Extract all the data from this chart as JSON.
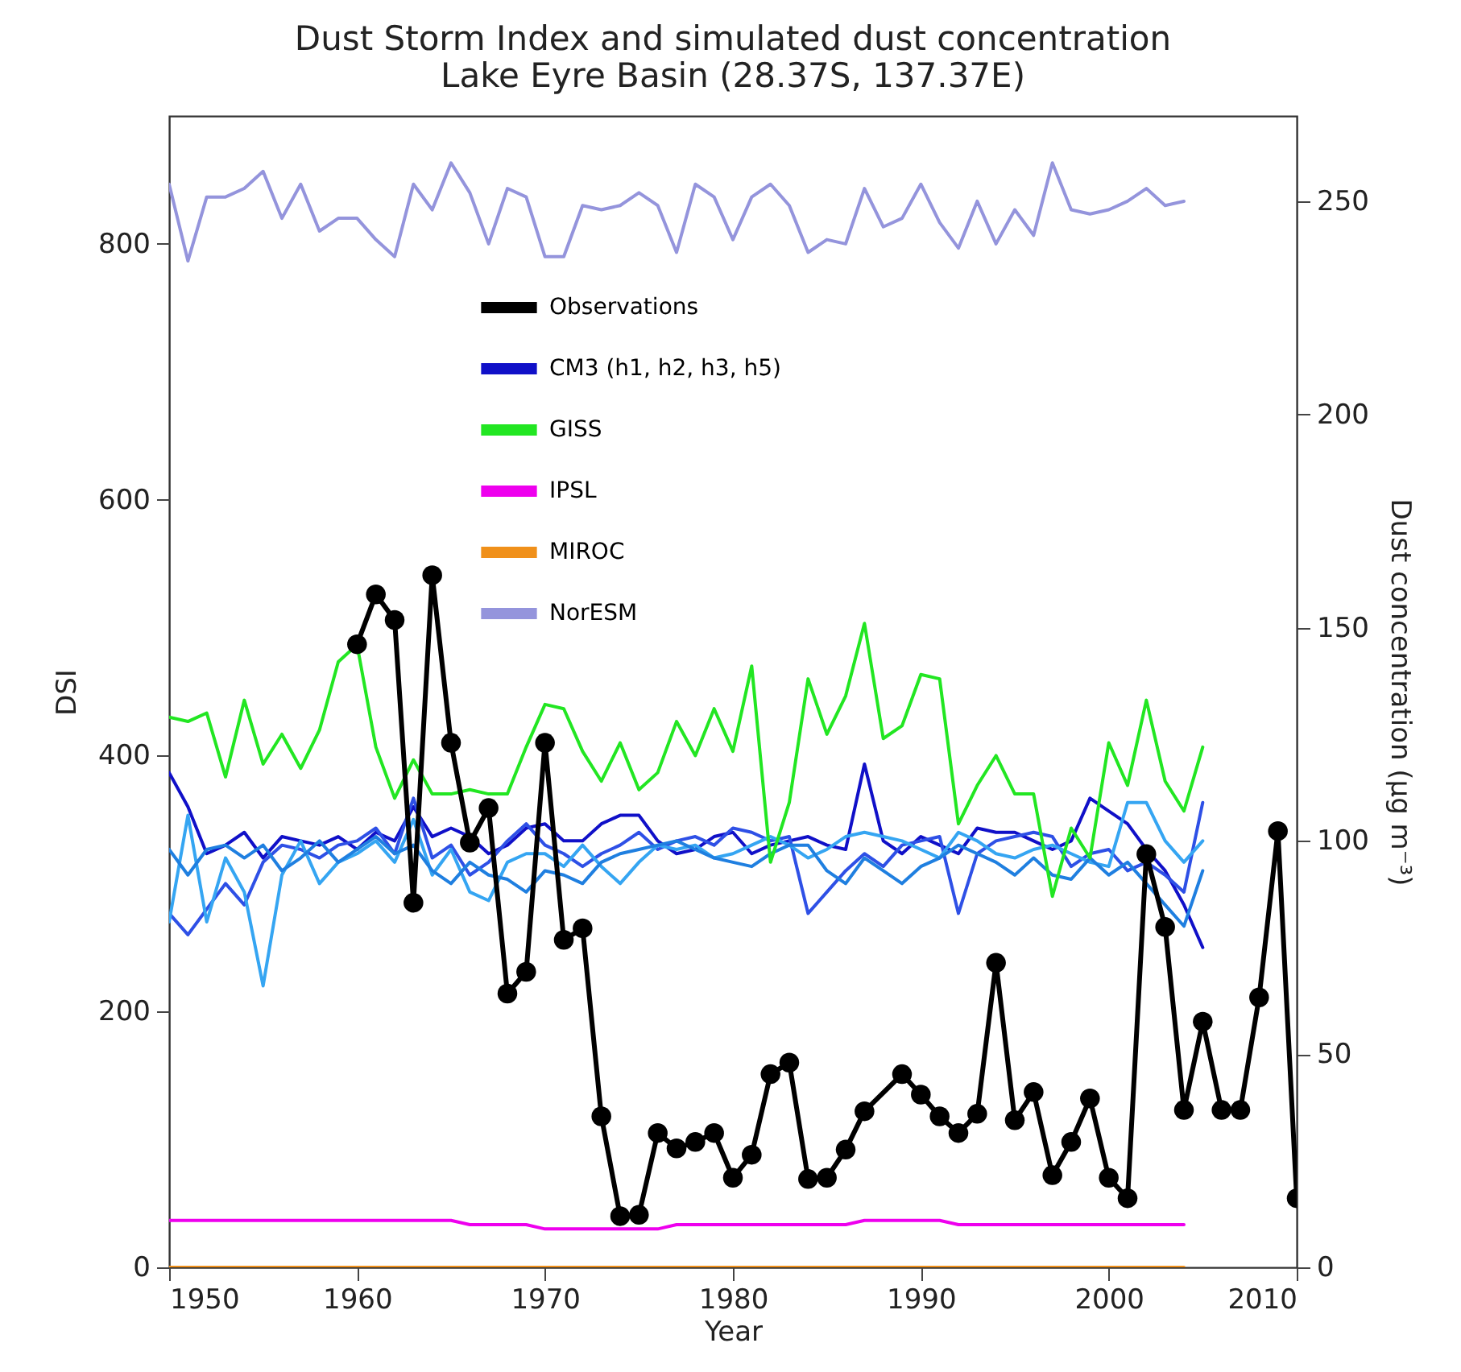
{
  "chart_data": {
    "type": "line",
    "title": "Dust Storm Index and simulated dust concentration",
    "subtitle": "Lake Eyre Basin (28.37S, 137.37E)",
    "xlabel": "Year",
    "ylabel": "DSI",
    "y2label": "Dust concentration (μg m⁻³)",
    "x": [
      1950,
      1951,
      1952,
      1953,
      1954,
      1955,
      1956,
      1957,
      1958,
      1959,
      1960,
      1961,
      1962,
      1963,
      1964,
      1965,
      1966,
      1967,
      1968,
      1969,
      1970,
      1971,
      1972,
      1973,
      1974,
      1975,
      1976,
      1977,
      1978,
      1979,
      1980,
      1981,
      1982,
      1983,
      1984,
      1985,
      1986,
      1987,
      1988,
      1989,
      1990,
      1991,
      1992,
      1993,
      1994,
      1995,
      1996,
      1997,
      1998,
      1999,
      2000,
      2001,
      2002,
      2003,
      2004,
      2005
    ],
    "xlim": [
      1950,
      2010
    ],
    "xticks": [
      1950,
      1960,
      1970,
      1980,
      1990,
      2000,
      2010
    ],
    "ylim": [
      0,
      900
    ],
    "yticks": [
      0,
      200,
      400,
      600,
      800
    ],
    "y2lim": [
      0,
      270
    ],
    "y2ticks": [
      0,
      50,
      100,
      150,
      200,
      250
    ],
    "grid": false,
    "legend": "top left",
    "series": [
      {
        "name": "Observations",
        "color": "#000000",
        "marker": "circle",
        "x": [
          1960,
          1961,
          1962,
          1963,
          1964,
          1965,
          1966,
          1967,
          1968,
          1969,
          1970,
          1971,
          1972,
          1973,
          1974,
          1975,
          1976,
          1977,
          1978,
          1979,
          1980,
          1981,
          1982,
          1983,
          1984,
          1985,
          1986,
          1987,
          1989,
          1990,
          1991,
          1992,
          1993,
          1994,
          1995,
          1996,
          1997,
          1998,
          1999,
          2000,
          2001,
          2002,
          2003,
          2004,
          2005,
          2006,
          2007,
          2008,
          2009,
          2010
        ],
        "values": [
          487,
          526,
          506,
          285,
          541,
          410,
          332,
          359,
          214,
          231,
          410,
          256,
          265,
          118,
          40,
          41,
          105,
          93,
          98,
          105,
          70,
          88,
          151,
          160,
          69,
          70,
          92,
          122,
          151,
          135,
          118,
          105,
          120,
          238,
          115,
          137,
          72,
          98,
          132,
          70,
          54,
          323,
          266,
          123,
          192,
          123,
          123,
          211,
          341,
          54
        ]
      },
      {
        "name": "CM3 (h1, h2, h3, h5)",
        "color": "#1010c8",
        "axis": "y2",
        "values": [
          116,
          108,
          97,
          99,
          102,
          96,
          101,
          100,
          99,
          101,
          98,
          102,
          100,
          108,
          101,
          103,
          101,
          97,
          99,
          103,
          104,
          100,
          100,
          104,
          106,
          106,
          100,
          97,
          98,
          101,
          102,
          97,
          99,
          100,
          101,
          99,
          98,
          118,
          100,
          97,
          101,
          99,
          97,
          103,
          102,
          102,
          100,
          98,
          100,
          110,
          107,
          104,
          98,
          93,
          85,
          75
        ]
      },
      {
        "color": "#2e50e6",
        "axis": "y2",
        "values": [
          83,
          78,
          84,
          90,
          85,
          95,
          99,
          98,
          96,
          99,
          100,
          103,
          97,
          110,
          96,
          99,
          92,
          95,
          100,
          104,
          99,
          97,
          94,
          97,
          99,
          102,
          98,
          100,
          101,
          99,
          103,
          102,
          100,
          101,
          83,
          88,
          93,
          97,
          94,
          99,
          100,
          101,
          83,
          97,
          100,
          101,
          102,
          101,
          94,
          97,
          98,
          93,
          95,
          92,
          88,
          109
        ]
      },
      {
        "color": "#35a5f2",
        "axis": "y2",
        "values": [
          81,
          106,
          81,
          96,
          88,
          66,
          92,
          100,
          90,
          95,
          97,
          100,
          95,
          105,
          92,
          98,
          88,
          86,
          95,
          97,
          97,
          94,
          99,
          94,
          90,
          95,
          99,
          98,
          99,
          96,
          97,
          99,
          101,
          99,
          96,
          98,
          101,
          102,
          101,
          100,
          98,
          96,
          102,
          100,
          97,
          96,
          98,
          99,
          97,
          95,
          94,
          109,
          109,
          100,
          95,
          100
        ]
      },
      {
        "color": "#1f7fe0",
        "axis": "y2",
        "values": [
          98,
          92,
          98,
          99,
          96,
          99,
          93,
          96,
          100,
          95,
          98,
          101,
          97,
          99,
          93,
          90,
          95,
          92,
          91,
          88,
          93,
          92,
          90,
          95,
          97,
          98,
          99,
          100,
          98,
          96,
          95,
          94,
          97,
          99,
          99,
          93,
          90,
          96,
          93,
          90,
          94,
          96,
          99,
          97,
          95,
          92,
          96,
          92,
          91,
          96,
          92,
          95,
          90,
          85,
          80,
          93
        ]
      },
      {
        "name": "GISS",
        "color": "#22e622",
        "axis": "y2",
        "values": [
          129,
          128,
          130,
          115,
          133,
          118,
          125,
          117,
          126,
          142,
          146,
          122,
          110,
          119,
          111,
          111,
          112,
          111,
          111,
          122,
          132,
          131,
          121,
          114,
          123,
          112,
          116,
          128,
          120,
          131,
          121,
          141,
          95,
          109,
          138,
          125,
          134,
          151,
          124,
          127,
          139,
          138,
          104,
          113,
          120,
          111,
          111,
          87,
          103,
          96,
          123,
          113,
          133,
          114,
          107,
          122
        ]
      },
      {
        "name": "IPSL",
        "color": "#ee00ee",
        "axis": "y2",
        "x": [
          1950,
          1951,
          1952,
          1953,
          1954,
          1955,
          1956,
          1957,
          1958,
          1959,
          1960,
          1961,
          1962,
          1963,
          1964,
          1965,
          1966,
          1967,
          1968,
          1969,
          1970,
          1971,
          1972,
          1973,
          1974,
          1975,
          1976,
          1977,
          1978,
          1979,
          1980,
          1981,
          1982,
          1983,
          1984,
          1985,
          1986,
          1987,
          1988,
          1989,
          1990,
          1991,
          1992,
          1993,
          1994,
          1995,
          1996,
          1997,
          1998,
          1999,
          2000,
          2001,
          2002,
          2003,
          2004
        ],
        "values": [
          11,
          11,
          11,
          11,
          11,
          11,
          11,
          11,
          11,
          11,
          11,
          11,
          11,
          11,
          11,
          11,
          10,
          10,
          10,
          10,
          9,
          9,
          9,
          9,
          9,
          9,
          9,
          10,
          10,
          10,
          10,
          10,
          10,
          10,
          10,
          10,
          10,
          11,
          11,
          11,
          11,
          11,
          10,
          10,
          10,
          10,
          10,
          10,
          10,
          10,
          10,
          10,
          10,
          10,
          10
        ]
      },
      {
        "name": "MIROC",
        "color": "#f0901a",
        "axis": "y2",
        "x": [
          1950,
          1951,
          1952,
          1953,
          1954,
          1955,
          1956,
          1957,
          1958,
          1959,
          1960,
          1961,
          1962,
          1963,
          1964,
          1965,
          1966,
          1967,
          1968,
          1969,
          1970,
          1971,
          1972,
          1973,
          1974,
          1975,
          1976,
          1977,
          1978,
          1979,
          1980,
          1981,
          1982,
          1983,
          1984,
          1985,
          1986,
          1987,
          1988,
          1989,
          1990,
          1991,
          1992,
          1993,
          1994,
          1995,
          1996,
          1997,
          1998,
          1999,
          2000,
          2001,
          2002,
          2003,
          2004
        ],
        "values": [
          0,
          0,
          0,
          0,
          0,
          0,
          0,
          0,
          0,
          0,
          0,
          0,
          0,
          0,
          0,
          0,
          0,
          0,
          0,
          0,
          0,
          0,
          0,
          0,
          0,
          0,
          0,
          0,
          0,
          0,
          0,
          0,
          0,
          0,
          0,
          0,
          0,
          0,
          0,
          0,
          0,
          0,
          0,
          0,
          0,
          0,
          0,
          0,
          0,
          0,
          0,
          0,
          0,
          0,
          0
        ]
      },
      {
        "name": "NorESM",
        "color": "#9494dc",
        "axis": "y2",
        "x": [
          1950,
          1951,
          1952,
          1953,
          1954,
          1955,
          1956,
          1957,
          1958,
          1959,
          1960,
          1961,
          1962,
          1963,
          1964,
          1965,
          1966,
          1967,
          1968,
          1969,
          1970,
          1971,
          1972,
          1973,
          1974,
          1975,
          1976,
          1977,
          1978,
          1979,
          1980,
          1981,
          1982,
          1983,
          1984,
          1985,
          1986,
          1987,
          1988,
          1989,
          1990,
          1991,
          1992,
          1993,
          1994,
          1995,
          1996,
          1997,
          1998,
          1999,
          2000,
          2001,
          2002,
          2003,
          2004
        ],
        "values": [
          254,
          236,
          251,
          251,
          253,
          257,
          246,
          254,
          243,
          246,
          246,
          241,
          237,
          254,
          248,
          259,
          252,
          240,
          253,
          251,
          237,
          237,
          249,
          248,
          249,
          252,
          249,
          238,
          254,
          251,
          241,
          251,
          254,
          249,
          238,
          241,
          240,
          253,
          244,
          246,
          254,
          245,
          239,
          250,
          240,
          248,
          242,
          259,
          248,
          247,
          248,
          250,
          253,
          249,
          250
        ]
      }
    ]
  }
}
